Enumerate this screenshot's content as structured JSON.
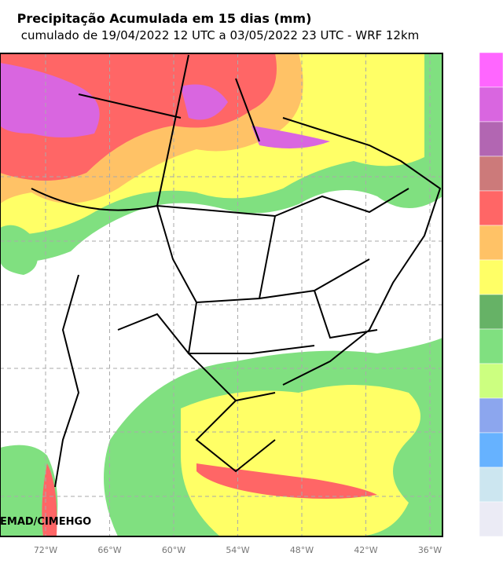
{
  "title": "Precipitação Acumulada em 15 dias (mm)",
  "subtitle": "cumulado de 19/04/2022 12 UTC a 03/05/2022 23 UTC - WRF 12km",
  "credit": "EMAD/CIMEHGO",
  "longitude_labels": [
    "72°W",
    "66°W",
    "60°W",
    "54°W",
    "48°W",
    "42°W",
    "36°W"
  ],
  "colorbar": {
    "colors": [
      "#ff66ff",
      "#d966e0",
      "#b266b2",
      "#cc7a7a",
      "#ff6666",
      "#ffc266",
      "#ffff66",
      "#66b266",
      "#80e080",
      "#ccff80",
      "#8ca6ee",
      "#66b2ff",
      "#cce6f0",
      "#ebebf5"
    ]
  }
}
